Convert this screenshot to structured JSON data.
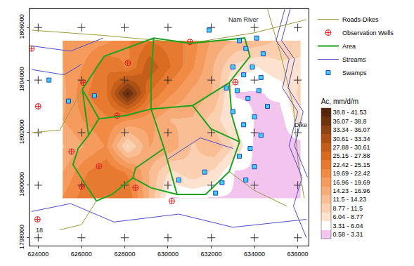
{
  "chart_data": {
    "type": "contour",
    "xlim": [
      623600,
      636500
    ],
    "ylim": [
      1797700,
      1806700
    ],
    "xticks": [
      624000,
      626000,
      628000,
      630000,
      632000,
      634000,
      636000
    ],
    "yticks": [
      1798000,
      1800000,
      1802000,
      1804000,
      1806000
    ],
    "grid": true,
    "legend": "right",
    "heatmap": {
      "name": "Ac, mm/d/m",
      "x": [
        625130,
        626130,
        627130,
        628130,
        629130,
        630130,
        631130,
        632130,
        633130,
        634130,
        635130,
        636130
      ],
      "y": [
        1799500,
        1800500,
        1801500,
        1802500,
        1803500,
        1804500,
        1805500
      ],
      "z": [
        [
          20,
          24,
          22,
          25,
          14,
          3,
          3,
          3,
          3,
          2,
          2,
          2
        ],
        [
          17,
          22,
          25,
          22,
          14,
          8,
          11,
          8,
          3,
          3,
          2,
          2
        ],
        [
          14,
          17,
          20,
          8,
          17,
          16,
          11,
          14,
          8,
          2,
          2,
          2
        ],
        [
          17,
          20,
          22,
          20,
          18,
          14,
          14,
          10,
          5,
          3,
          2,
          8
        ],
        [
          16,
          22,
          25,
          40,
          25,
          20,
          16,
          14,
          3,
          3,
          4,
          10
        ],
        [
          17,
          20,
          25,
          22,
          30,
          25,
          20,
          14,
          8,
          6,
          8,
          8
        ],
        [
          17,
          18,
          19,
          22,
          25,
          24,
          21,
          16,
          14,
          13,
          11,
          10
        ]
      ]
    },
    "colorbar": {
      "title": "Ac, mm/d/m",
      "bins": [
        0.58,
        3.31,
        6.04,
        8.77,
        11.5,
        14.23,
        16.96,
        19.69,
        22.42,
        25.15,
        27.88,
        30.61,
        33.34,
        36.07,
        38.8,
        41.53
      ],
      "labels": [
        "0.58 - 3.31",
        "3.31 - 6.04",
        "6.04 - 8.77",
        "8.77 - 11.5",
        "11.5 - 14.23",
        "14.23 - 16.96",
        "16.96 - 19.69",
        "19.69 - 22.42",
        "22.42 - 25.15",
        "25.15 - 27.88",
        "27.88 - 30.61",
        "30.61 - 33.34",
        "33.34 - 36.07",
        "36.07 - 38.8",
        "38.8 - 41.53"
      ],
      "colors": [
        "#f2c4ee",
        "#ffffff",
        "#fde2cf",
        "#fbd0b0",
        "#f9be93",
        "#f7ac77",
        "#f59b5d",
        "#f08a45",
        "#e67a30",
        "#d96c20",
        "#c45e1a",
        "#ad5016",
        "#8f4213",
        "#70330f",
        "#55260b"
      ]
    },
    "series": [
      {
        "name": "Roads-Dikes",
        "type": "line",
        "color": "#9a9a3c",
        "line_style": "solid",
        "x": [
          623700,
          627000,
          631000,
          634000,
          636400,
          null,
          634600,
          635200,
          635800,
          636000,
          636300,
          null,
          623700,
          625000,
          626040,
          null,
          626690,
          626000,
          625000,
          null,
          632830,
          634000,
          635500
        ],
        "y": [
          1805900,
          1805700,
          1805400,
          1805800,
          1806300,
          null,
          1806700,
          1805000,
          1803000,
          1801000,
          1799500,
          null,
          1802000,
          1802100,
          1803650,
          null,
          1799400,
          1798500,
          1798300,
          null,
          1800520,
          1799800,
          1799200
        ]
      },
      {
        "name": "Observation Wells",
        "type": "scatter",
        "color": "#e02020",
        "marker": "circle-cross-open",
        "x": [
          623690,
          624000,
          625540,
          626020,
          626090,
          628140,
          626810,
          627660,
          631020,
          633120,
          628500,
          630180,
          623970
        ],
        "y": [
          1805200,
          1803000,
          1801280,
          1799950,
          1803900,
          1804650,
          1800720,
          1802650,
          1805450,
          1803920,
          1799900,
          1799400,
          1798700
        ]
      },
      {
        "name": "Area",
        "type": "line",
        "color": "#1fa31f",
        "line_style": "thick",
        "x": [
          626040,
          627050,
          629340,
          631020,
          633550,
          633790,
          632830,
          632950,
          633310,
          632830,
          631740,
          630420,
          629220,
          628380,
          627420,
          626690,
          626090,
          625610,
          625850,
          626330,
          626040,
          null,
          626040,
          626810,
          628020,
          629220,
          631140,
          632830,
          null,
          626810,
          626330,
          null,
          629220,
          629820,
          628500,
          628380,
          null,
          629820,
          630420,
          null,
          631140,
          631980,
          633310,
          null,
          629340,
          629220,
          629220
        ],
        "y": [
          1803650,
          1804900,
          1805600,
          1805400,
          1805600,
          1804900,
          1803900,
          1802650,
          1801650,
          1800520,
          1799650,
          1799650,
          1799900,
          1800280,
          1799650,
          1799400,
          1800150,
          1800780,
          1801400,
          1801900,
          1803650,
          null,
          1803650,
          1802530,
          1802650,
          1802900,
          1803030,
          1803900,
          null,
          1802530,
          1801900,
          null,
          1802900,
          1801400,
          1800650,
          1800280,
          null,
          1801400,
          1799650,
          null,
          1803030,
          1802150,
          1801650,
          null,
          1805600,
          1804150,
          1802900
        ]
      },
      {
        "name": "Streams",
        "type": "line",
        "color": "#4a4ad0",
        "line_style": "solid",
        "x": [
          635400,
          635000,
          635600,
          635300,
          636000,
          635600,
          636200,
          635800,
          636400,
          null,
          635650,
          635250,
          635850,
          635550,
          636250,
          635850,
          636450,
          null,
          623700,
          625500,
          627000,
          null,
          623700,
          625500,
          627500,
          630500,
          633000,
          636400,
          null,
          630000,
          631500,
          633000,
          null,
          623700,
          625200,
          626000
        ],
        "y": [
          1806700,
          1805500,
          1804800,
          1803700,
          1802800,
          1801500,
          1800300,
          1799200,
          1798000,
          null,
          1806700,
          1805500,
          1804800,
          1803700,
          1802800,
          1801500,
          1800300,
          null,
          1805300,
          1805100,
          1805600,
          null,
          1799000,
          1799300,
          1798600,
          1798900,
          1798400,
          1798700,
          null,
          1801000,
          1801800,
          1801400,
          null,
          1804400,
          1804200,
          1804600
        ]
      },
      {
        "name": "Swamps",
        "type": "scatter",
        "color": "#40d0f0",
        "marker": "square",
        "x": [
          633300,
          633600,
          634100,
          634400,
          633000,
          633500,
          633900,
          634300,
          632700,
          633200,
          633700,
          634200,
          634600,
          633000,
          633500,
          634000,
          634300,
          633800,
          633300,
          634000,
          633600,
          632500,
          632200,
          631700,
          626600,
          625400,
          624500,
          631900,
          630500
        ],
        "y": [
          1805500,
          1805200,
          1805600,
          1805000,
          1804500,
          1804200,
          1804500,
          1804100,
          1803700,
          1803600,
          1803300,
          1803600,
          1803000,
          1802800,
          1802300,
          1802600,
          1801900,
          1801400,
          1801100,
          1800700,
          1800200,
          1800100,
          1799700,
          1800500,
          1803400,
          1803200,
          1804000,
          1805900,
          1800200
        ]
      }
    ],
    "annotations": [
      {
        "text": "Nam River",
        "x": 633500,
        "y": 1806300
      },
      {
        "text": "Dike",
        "x": 636150,
        "y": 1802300
      },
      {
        "text": "18",
        "x": 624050,
        "y": 1798300
      }
    ]
  }
}
